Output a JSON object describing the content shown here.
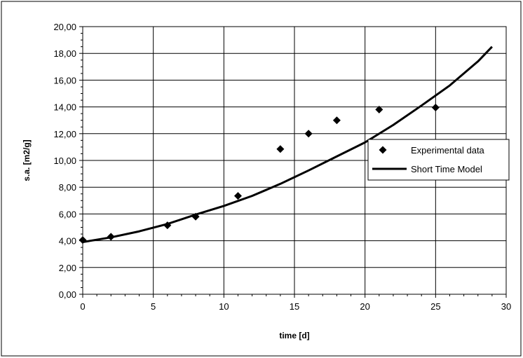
{
  "chart_data": {
    "type": "scatter",
    "title": "",
    "xlabel": "time [d]",
    "ylabel": "s.a. [m2/g]",
    "xlim": [
      0,
      30
    ],
    "ylim": [
      0,
      20
    ],
    "x_ticks": [
      0,
      5,
      10,
      15,
      20,
      25,
      30
    ],
    "y_ticks": [
      0,
      2,
      4,
      6,
      8,
      10,
      12,
      14,
      16,
      18,
      20
    ],
    "x_tick_labels": [
      "0",
      "5",
      "10",
      "15",
      "20",
      "25",
      "30"
    ],
    "y_tick_labels": [
      "0,00",
      "2,00",
      "4,00",
      "6,00",
      "8,00",
      "10,00",
      "12,00",
      "14,00",
      "16,00",
      "18,00",
      "20,00"
    ],
    "grid": true,
    "legend_position": "right",
    "series": [
      {
        "name": "Experimental data",
        "type": "scatter",
        "marker": "diamond",
        "color": "#000000",
        "x": [
          0,
          2,
          6,
          8,
          11,
          14,
          16,
          18,
          21,
          25
        ],
        "y": [
          4.05,
          4.3,
          5.15,
          5.8,
          7.35,
          10.85,
          12.0,
          13.0,
          13.8,
          13.95
        ]
      },
      {
        "name": "Short Time Model",
        "type": "line",
        "color": "#000000",
        "x": [
          0,
          2,
          4,
          6,
          8,
          10,
          12,
          14,
          16,
          18,
          20,
          22,
          24,
          26,
          28,
          29
        ],
        "y": [
          3.9,
          4.25,
          4.7,
          5.25,
          5.95,
          6.6,
          7.35,
          8.25,
          9.25,
          10.3,
          11.35,
          12.65,
          14.1,
          15.6,
          17.4,
          18.5
        ]
      }
    ]
  }
}
